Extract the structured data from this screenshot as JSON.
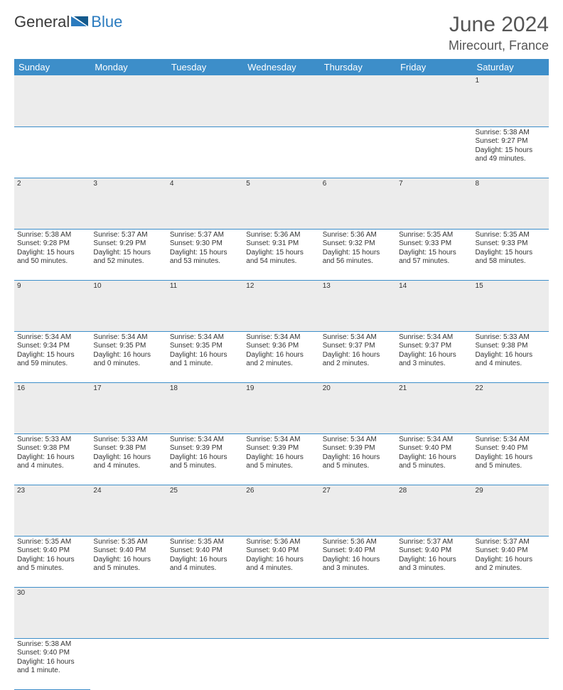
{
  "brand": {
    "part1": "General",
    "part2": "Blue"
  },
  "title": "June 2024",
  "location": "Mirecourt, France",
  "colors": {
    "header_bg": "#3d8ec9",
    "header_text": "#ffffff",
    "daynum_bg": "#ececec",
    "cell_border": "#3d8ec9",
    "title_color": "#555555"
  },
  "weekdays": [
    "Sunday",
    "Monday",
    "Tuesday",
    "Wednesday",
    "Thursday",
    "Friday",
    "Saturday"
  ],
  "weeks": [
    [
      null,
      null,
      null,
      null,
      null,
      null,
      {
        "n": "1",
        "sunrise": "5:38 AM",
        "sunset": "9:27 PM",
        "daylight": "15 hours and 49 minutes."
      }
    ],
    [
      {
        "n": "2",
        "sunrise": "5:38 AM",
        "sunset": "9:28 PM",
        "daylight": "15 hours and 50 minutes."
      },
      {
        "n": "3",
        "sunrise": "5:37 AM",
        "sunset": "9:29 PM",
        "daylight": "15 hours and 52 minutes."
      },
      {
        "n": "4",
        "sunrise": "5:37 AM",
        "sunset": "9:30 PM",
        "daylight": "15 hours and 53 minutes."
      },
      {
        "n": "5",
        "sunrise": "5:36 AM",
        "sunset": "9:31 PM",
        "daylight": "15 hours and 54 minutes."
      },
      {
        "n": "6",
        "sunrise": "5:36 AM",
        "sunset": "9:32 PM",
        "daylight": "15 hours and 56 minutes."
      },
      {
        "n": "7",
        "sunrise": "5:35 AM",
        "sunset": "9:33 PM",
        "daylight": "15 hours and 57 minutes."
      },
      {
        "n": "8",
        "sunrise": "5:35 AM",
        "sunset": "9:33 PM",
        "daylight": "15 hours and 58 minutes."
      }
    ],
    [
      {
        "n": "9",
        "sunrise": "5:34 AM",
        "sunset": "9:34 PM",
        "daylight": "15 hours and 59 minutes."
      },
      {
        "n": "10",
        "sunrise": "5:34 AM",
        "sunset": "9:35 PM",
        "daylight": "16 hours and 0 minutes."
      },
      {
        "n": "11",
        "sunrise": "5:34 AM",
        "sunset": "9:35 PM",
        "daylight": "16 hours and 1 minute."
      },
      {
        "n": "12",
        "sunrise": "5:34 AM",
        "sunset": "9:36 PM",
        "daylight": "16 hours and 2 minutes."
      },
      {
        "n": "13",
        "sunrise": "5:34 AM",
        "sunset": "9:37 PM",
        "daylight": "16 hours and 2 minutes."
      },
      {
        "n": "14",
        "sunrise": "5:34 AM",
        "sunset": "9:37 PM",
        "daylight": "16 hours and 3 minutes."
      },
      {
        "n": "15",
        "sunrise": "5:33 AM",
        "sunset": "9:38 PM",
        "daylight": "16 hours and 4 minutes."
      }
    ],
    [
      {
        "n": "16",
        "sunrise": "5:33 AM",
        "sunset": "9:38 PM",
        "daylight": "16 hours and 4 minutes."
      },
      {
        "n": "17",
        "sunrise": "5:33 AM",
        "sunset": "9:38 PM",
        "daylight": "16 hours and 4 minutes."
      },
      {
        "n": "18",
        "sunrise": "5:34 AM",
        "sunset": "9:39 PM",
        "daylight": "16 hours and 5 minutes."
      },
      {
        "n": "19",
        "sunrise": "5:34 AM",
        "sunset": "9:39 PM",
        "daylight": "16 hours and 5 minutes."
      },
      {
        "n": "20",
        "sunrise": "5:34 AM",
        "sunset": "9:39 PM",
        "daylight": "16 hours and 5 minutes."
      },
      {
        "n": "21",
        "sunrise": "5:34 AM",
        "sunset": "9:40 PM",
        "daylight": "16 hours and 5 minutes."
      },
      {
        "n": "22",
        "sunrise": "5:34 AM",
        "sunset": "9:40 PM",
        "daylight": "16 hours and 5 minutes."
      }
    ],
    [
      {
        "n": "23",
        "sunrise": "5:35 AM",
        "sunset": "9:40 PM",
        "daylight": "16 hours and 5 minutes."
      },
      {
        "n": "24",
        "sunrise": "5:35 AM",
        "sunset": "9:40 PM",
        "daylight": "16 hours and 5 minutes."
      },
      {
        "n": "25",
        "sunrise": "5:35 AM",
        "sunset": "9:40 PM",
        "daylight": "16 hours and 4 minutes."
      },
      {
        "n": "26",
        "sunrise": "5:36 AM",
        "sunset": "9:40 PM",
        "daylight": "16 hours and 4 minutes."
      },
      {
        "n": "27",
        "sunrise": "5:36 AM",
        "sunset": "9:40 PM",
        "daylight": "16 hours and 3 minutes."
      },
      {
        "n": "28",
        "sunrise": "5:37 AM",
        "sunset": "9:40 PM",
        "daylight": "16 hours and 3 minutes."
      },
      {
        "n": "29",
        "sunrise": "5:37 AM",
        "sunset": "9:40 PM",
        "daylight": "16 hours and 2 minutes."
      }
    ],
    [
      {
        "n": "30",
        "sunrise": "5:38 AM",
        "sunset": "9:40 PM",
        "daylight": "16 hours and 1 minute."
      },
      null,
      null,
      null,
      null,
      null,
      null
    ]
  ],
  "labels": {
    "sunrise": "Sunrise:",
    "sunset": "Sunset:",
    "daylight": "Daylight:"
  }
}
